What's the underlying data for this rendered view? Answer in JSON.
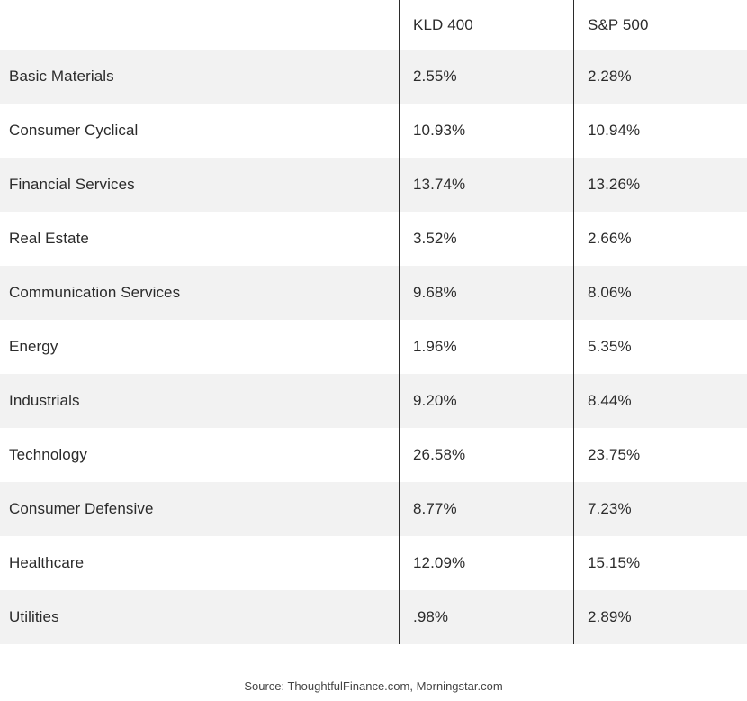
{
  "table": {
    "headers": [
      "",
      "KLD 400",
      "S&P 500"
    ],
    "rows": [
      {
        "sector": "Basic Materials",
        "kld": "2.55%",
        "sp": "2.28%"
      },
      {
        "sector": "Consumer Cyclical",
        "kld": "10.93%",
        "sp": "10.94%"
      },
      {
        "sector": "Financial Services",
        "kld": "13.74%",
        "sp": "13.26%"
      },
      {
        "sector": "Real Estate",
        "kld": "3.52%",
        "sp": "2.66%"
      },
      {
        "sector": "Communication Services",
        "kld": "9.68%",
        "sp": "8.06%"
      },
      {
        "sector": "Energy",
        "kld": "1.96%",
        "sp": "5.35%"
      },
      {
        "sector": "Industrials",
        "kld": "9.20%",
        "sp": "8.44%"
      },
      {
        "sector": "Technology",
        "kld": "26.58%",
        "sp": "23.75%"
      },
      {
        "sector": "Consumer Defensive",
        "kld": "8.77%",
        "sp": "7.23%"
      },
      {
        "sector": "Healthcare",
        "kld": "12.09%",
        "sp": "15.15%"
      },
      {
        "sector": "Utilities",
        "kld": ".98%",
        "sp": "2.89%"
      }
    ]
  },
  "source": "Source: ThoughtfulFinance.com, Morningstar.com"
}
